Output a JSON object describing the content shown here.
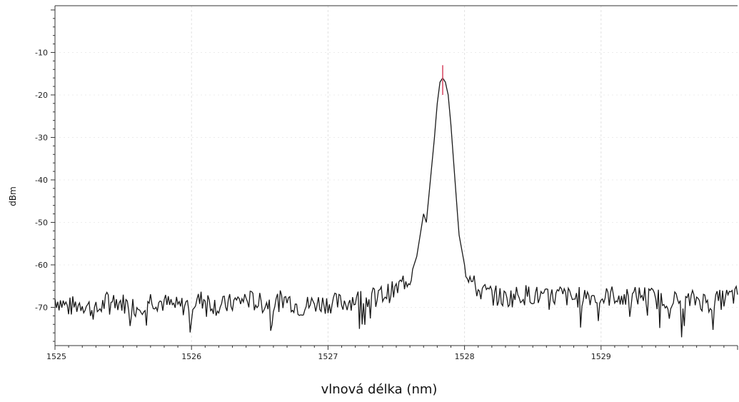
{
  "chart_data": {
    "type": "line",
    "title": "",
    "xlabel": "vlnová délka (nm)",
    "ylabel": "dBm",
    "xlim": [
      1525,
      1530
    ],
    "ylim": [
      -79,
      1
    ],
    "xticks": [
      1525,
      1526,
      1527,
      1528,
      1529
    ],
    "xtick_labels": [
      "1525",
      "1526",
      "1527",
      "1528",
      "1529"
    ],
    "yticks": [
      -10,
      -20,
      -30,
      -40,
      -50,
      -60,
      -70
    ],
    "ytick_labels": [
      "-10",
      "-20",
      "-30",
      "-40",
      "-50",
      "-60",
      "-70"
    ],
    "grid": true,
    "line_color": "#1a1a1a",
    "marker_color": "#d9506a",
    "peak_marker": {
      "x": 1527.84,
      "y_top": -13,
      "y_bottom": -20
    },
    "series": [
      {
        "x": [
          1525.0,
          1525.1,
          1525.2,
          1525.3,
          1525.4,
          1525.5,
          1525.6,
          1525.7,
          1525.8,
          1525.9,
          1526.0,
          1526.1,
          1526.2,
          1526.3,
          1526.4,
          1526.5,
          1526.6,
          1526.7,
          1526.8,
          1526.9,
          1527.0,
          1527.1,
          1527.2,
          1527.3,
          1527.4,
          1527.5,
          1527.55,
          1527.6,
          1527.65,
          1527.7,
          1527.72,
          1527.75,
          1527.78,
          1527.8,
          1527.82,
          1527.84,
          1527.86,
          1527.88,
          1527.9,
          1527.93,
          1527.96,
          1528.0,
          1528.05,
          1528.1,
          1528.2,
          1528.3,
          1528.4,
          1528.5,
          1528.6,
          1528.7,
          1528.8,
          1528.9,
          1529.0,
          1529.1,
          1529.2,
          1529.3,
          1529.4,
          1529.5,
          1529.6,
          1529.7,
          1529.8,
          1529.9,
          1530.0
        ],
        "values": [
          -68,
          -70,
          -69,
          -71,
          -68,
          -69,
          -70,
          -68,
          -69,
          -70,
          -69,
          -68,
          -70,
          -69,
          -68,
          -69,
          -69,
          -68,
          -70,
          -69,
          -69,
          -69,
          -68,
          -68,
          -67,
          -66,
          -64,
          -63,
          -58,
          -48,
          -50,
          -40,
          -30,
          -22,
          -17,
          -16,
          -17,
          -20,
          -27,
          -40,
          -53,
          -60,
          -64,
          -66,
          -67,
          -68,
          -67,
          -67,
          -68,
          -67,
          -68,
          -67,
          -68,
          -67,
          -68,
          -67,
          -68,
          -68,
          -69,
          -68,
          -69,
          -68,
          -67
        ]
      }
    ]
  }
}
